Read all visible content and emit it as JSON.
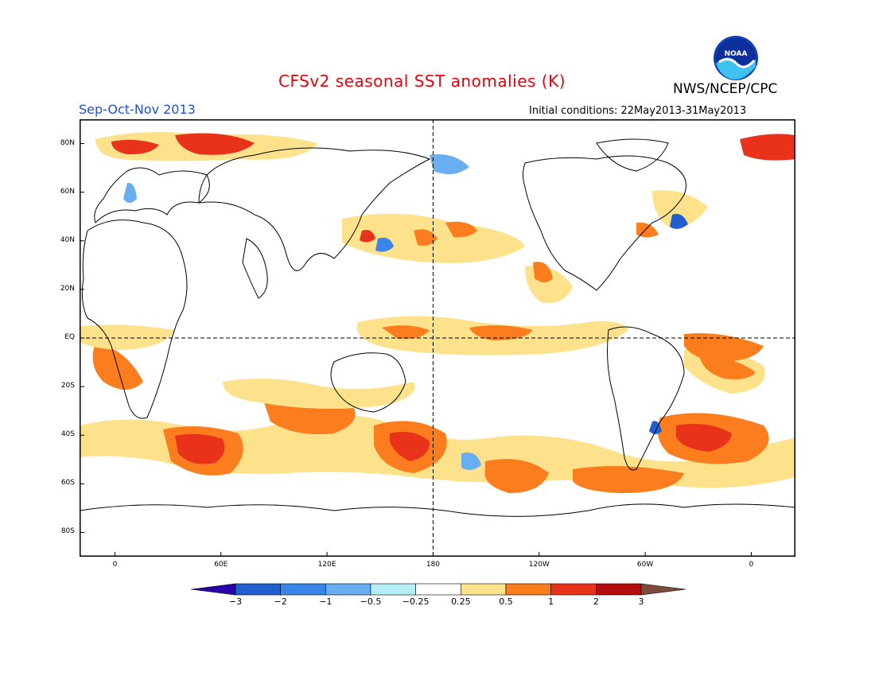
{
  "header": {
    "title": "CFSv2 seasonal SST anomalies (K)",
    "season": "Sep-Oct-Nov 2013",
    "initial_conditions": "Initial conditions: 22May2013-31May2013",
    "agency": "NWS/NCEP/CPC",
    "logo_text": "NOAA"
  },
  "map": {
    "projection": "equirectangular",
    "lon_range": [
      -20,
      385
    ],
    "lat_range": [
      -90,
      90
    ],
    "lat_ticks": [
      {
        "lat": 80,
        "label": "80N"
      },
      {
        "lat": 60,
        "label": "60N"
      },
      {
        "lat": 40,
        "label": "40N"
      },
      {
        "lat": 20,
        "label": "20N"
      },
      {
        "lat": 0,
        "label": "EQ"
      },
      {
        "lat": -20,
        "label": "20S"
      },
      {
        "lat": -40,
        "label": "40S"
      },
      {
        "lat": -60,
        "label": "60S"
      },
      {
        "lat": -80,
        "label": "80S"
      }
    ],
    "lon_ticks": [
      {
        "lon": 0,
        "label": "0"
      },
      {
        "lon": 60,
        "label": "60E"
      },
      {
        "lon": 120,
        "label": "120E"
      },
      {
        "lon": 180,
        "label": "180"
      },
      {
        "lon": 240,
        "label": "120W"
      },
      {
        "lon": 300,
        "label": "60W"
      },
      {
        "lon": 360,
        "label": "0"
      }
    ],
    "reference_lines": {
      "equator": true,
      "dateline": true
    }
  },
  "colorbar": {
    "labels": [
      "-3",
      "-2",
      "-1",
      "-0.5",
      "-0.25",
      "0.25",
      "0.5",
      "1",
      "2",
      "3"
    ],
    "colors": [
      "#2a00a8",
      "#1f5fd0",
      "#3a86e8",
      "#68aef0",
      "#b4f0f8",
      "#ffffff",
      "#fde28b",
      "#fb7d1e",
      "#e8331a",
      "#b50d0d",
      "#7d4b3a"
    ]
  }
}
